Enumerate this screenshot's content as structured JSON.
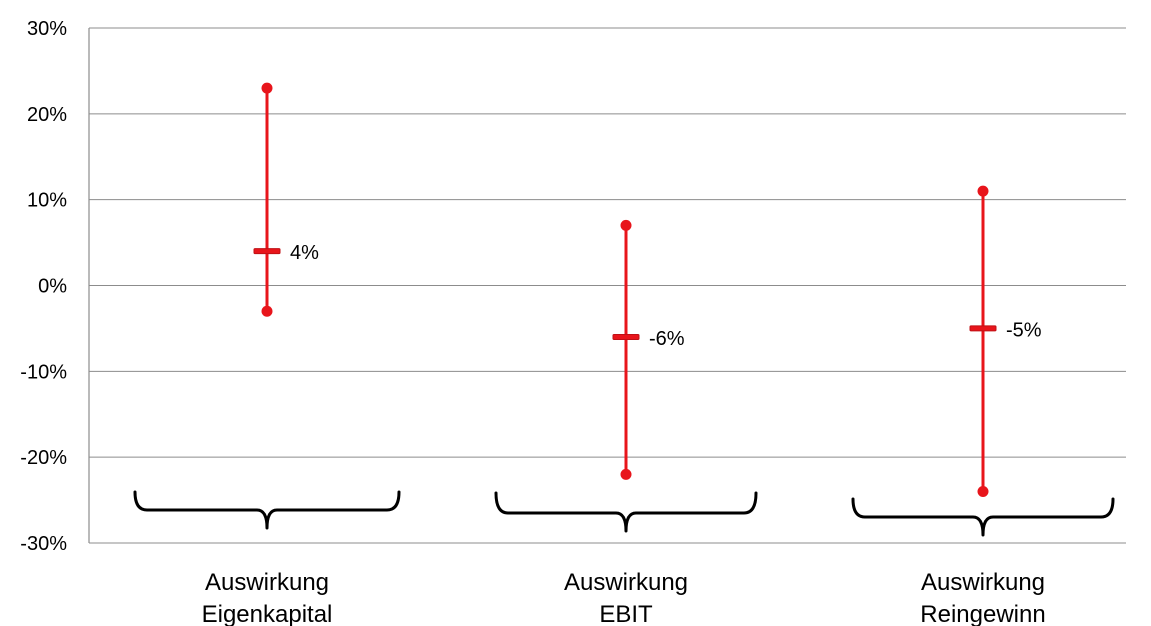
{
  "chart_data": {
    "type": "range",
    "ylim": [
      -30,
      30
    ],
    "y_ticks": [
      "30%",
      "20%",
      "10%",
      "0%",
      "-10%",
      "-20%",
      "-30%"
    ],
    "y_tick_values": [
      30,
      20,
      10,
      0,
      -10,
      -20,
      -30
    ],
    "grid": true,
    "categories": [
      {
        "lines": [
          "Auswirkung",
          "Eigenkapital"
        ]
      },
      {
        "lines": [
          "Auswirkung",
          "EBIT"
        ]
      },
      {
        "lines": [
          "Auswirkung",
          "Reingewinn"
        ]
      }
    ],
    "series": [
      {
        "high": 23,
        "low": -3,
        "mid": 4,
        "mid_label": "4%"
      },
      {
        "high": 7,
        "low": -22,
        "mid": -6,
        "mid_label": "-6%"
      },
      {
        "high": 11,
        "low": -24,
        "mid": -5,
        "mid_label": "-5%"
      }
    ],
    "colors": {
      "range": "#e8151b",
      "grid": "#8c8c8c",
      "brace": "#000000"
    }
  }
}
